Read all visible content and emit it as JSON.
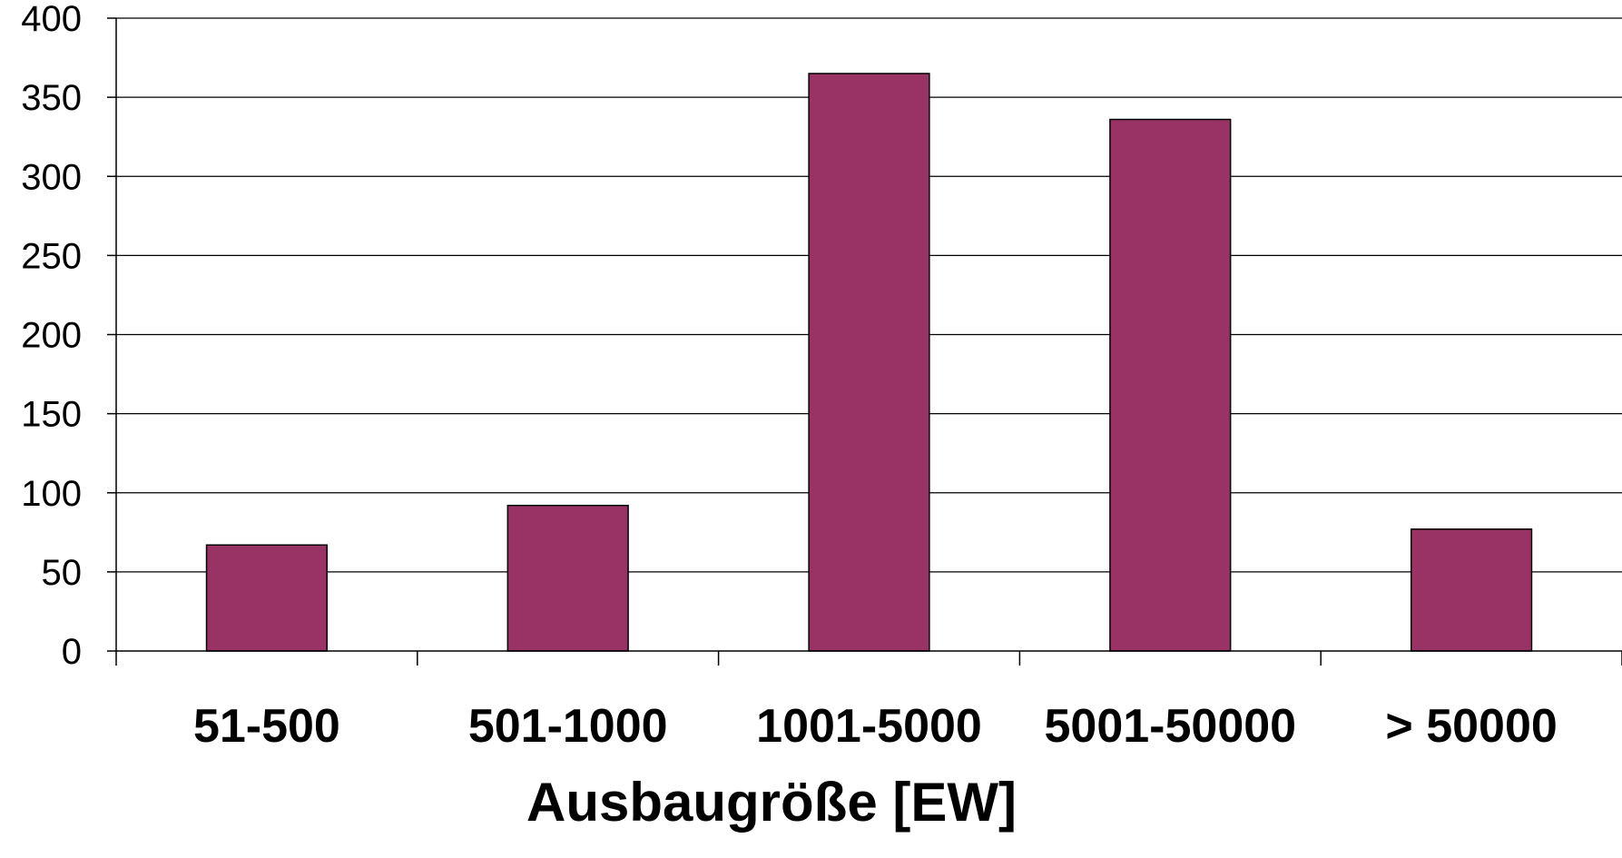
{
  "chart_data": {
    "type": "bar",
    "categories": [
      "51-500",
      "501-1000",
      "1001-5000",
      "5001-50000",
      "> 50000"
    ],
    "values": [
      67,
      92,
      365,
      336,
      77
    ],
    "xlabel": "Ausbaugröße [EW]",
    "ylabel": "",
    "ylim": [
      0,
      400
    ],
    "yticks": [
      0,
      50,
      100,
      150,
      200,
      250,
      300,
      350,
      400
    ],
    "grid": true,
    "legend": "none",
    "colors": {
      "bar": "#993366",
      "bar_border": "#000000",
      "grid": "#000000",
      "background": "#ffffff"
    }
  }
}
